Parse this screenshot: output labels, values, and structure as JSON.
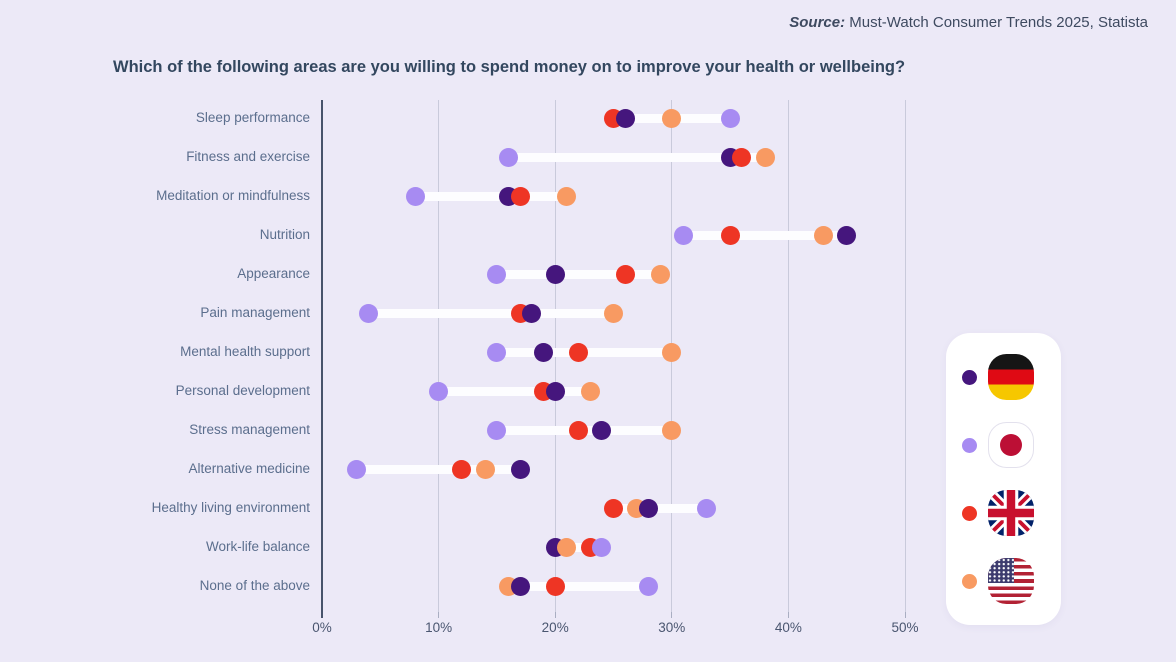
{
  "source": {
    "label": "Source:",
    "text": " Must-Watch Consumer Trends 2025, Statista"
  },
  "title": "Which of the following areas are you willing to spend money on to improve your health or wellbeing?",
  "colors": {
    "background": "#ECE9F7",
    "title_text": "#33475F",
    "category_text": "#5B6E8D",
    "tick_text": "#4A5670",
    "gridline": "#C9CADB",
    "axis_line": "#47536B",
    "connector_bar": "#FDFDFF",
    "legend_card": "#FFFFFF"
  },
  "chart_data": {
    "type": "scatter",
    "subtype": "dot-plot-dumbbell",
    "unit": "%",
    "grid": "vertical",
    "legend_position": "right",
    "x_axis": {
      "min": 0,
      "max": 50,
      "ticks": [
        "0%",
        "10%",
        "20%",
        "30%",
        "40%",
        "50%"
      ],
      "tick_values": [
        0,
        10,
        20,
        30,
        40,
        50
      ]
    },
    "categories": [
      "Sleep performance",
      "Fitness and exercise",
      "Meditation or mindfulness",
      "Nutrition",
      "Appearance",
      "Pain management",
      "Mental health support",
      "Personal development",
      "Stress management",
      "Alternative medicine",
      "Healthy living environment",
      "Work-life balance",
      "None of the above"
    ],
    "series": [
      {
        "name": "Germany",
        "icon": "germany-flag-icon",
        "color": "#45167D",
        "values": [
          26,
          35,
          16,
          45,
          20,
          18,
          19,
          20,
          24,
          17,
          28,
          20,
          17
        ]
      },
      {
        "name": "Japan",
        "icon": "japan-flag-icon",
        "color": "#A78BF2",
        "values": [
          35,
          16,
          8,
          31,
          15,
          4,
          15,
          10,
          15,
          3,
          33,
          24,
          28
        ]
      },
      {
        "name": "United Kingdom",
        "icon": "uk-flag-icon",
        "color": "#EE3524",
        "values": [
          25,
          36,
          17,
          35,
          26,
          17,
          22,
          19,
          22,
          12,
          25,
          23,
          20
        ]
      },
      {
        "name": "United States",
        "icon": "usa-flag-icon",
        "color": "#F89A62",
        "values": [
          30,
          38,
          21,
          43,
          29,
          25,
          30,
          23,
          30,
          14,
          27,
          21,
          16
        ]
      }
    ]
  }
}
